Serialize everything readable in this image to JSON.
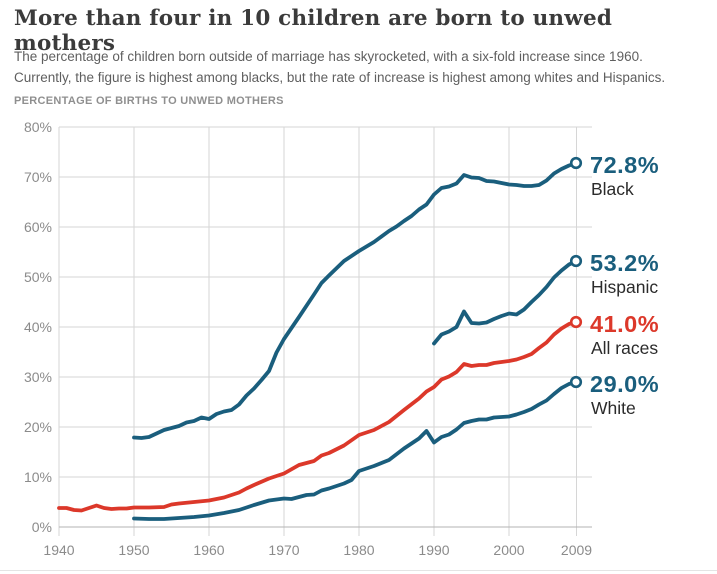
{
  "header": {
    "title": "More than four in 10 children are born to unwed mothers",
    "subtitle_line1": "The percentage of children born outside of marriage has skyrocketed, with a six-fold increase since 1960.",
    "subtitle_line2": "Currently, the figure is highest among blacks, but the rate of increase is highest among whites and Hispanics.",
    "kicker": "PERCENTAGE OF BIRTHS TO UNWED MOTHERS"
  },
  "colors": {
    "line_blue": "#1a5e7d",
    "line_red": "#dc382a",
    "grid": "#d6d6d6",
    "axis_baseline": "#b3b3b3",
    "tick_stub": "#c9c9c9",
    "tick_label": "#8b8b8b",
    "series_name_text": "#2b2b2b",
    "background": "#ffffff"
  },
  "chart_data": {
    "type": "line",
    "title": "More than four in 10 children are born to unwed mothers",
    "ylabel": "PERCENTAGE OF BIRTHS TO UNWED MOTHERS",
    "xlabel": "",
    "xlim": [
      1940,
      2009
    ],
    "ylim": [
      0,
      80
    ],
    "grid": true,
    "x_ticks": [
      1940,
      1950,
      1960,
      1970,
      1980,
      1990,
      2000,
      2009
    ],
    "y_ticks": [
      0,
      10,
      20,
      30,
      40,
      50,
      60,
      70,
      80
    ],
    "y_tick_suffix": "%",
    "legend_position": "right-end-labels",
    "series": [
      {
        "name": "Black",
        "end_label": "72.8%",
        "color": "#1a5e7d",
        "label_color": "#1a5e7d",
        "points": [
          [
            1950,
            17.9
          ],
          [
            1951,
            17.8
          ],
          [
            1952,
            18.0
          ],
          [
            1954,
            19.4
          ],
          [
            1956,
            20.2
          ],
          [
            1957,
            20.9
          ],
          [
            1958,
            21.2
          ],
          [
            1959,
            21.9
          ],
          [
            1960,
            21.6
          ],
          [
            1961,
            22.6
          ],
          [
            1962,
            23.1
          ],
          [
            1963,
            23.4
          ],
          [
            1964,
            24.5
          ],
          [
            1965,
            26.3
          ],
          [
            1966,
            27.7
          ],
          [
            1967,
            29.4
          ],
          [
            1968,
            31.2
          ],
          [
            1969,
            34.9
          ],
          [
            1970,
            37.6
          ],
          [
            1972,
            42.0
          ],
          [
            1974,
            46.5
          ],
          [
            1975,
            48.8
          ],
          [
            1976,
            50.3
          ],
          [
            1978,
            53.2
          ],
          [
            1980,
            55.2
          ],
          [
            1982,
            57.0
          ],
          [
            1984,
            59.2
          ],
          [
            1985,
            60.1
          ],
          [
            1986,
            61.2
          ],
          [
            1987,
            62.2
          ],
          [
            1988,
            63.5
          ],
          [
            1989,
            64.5
          ],
          [
            1990,
            66.5
          ],
          [
            1991,
            67.8
          ],
          [
            1992,
            68.1
          ],
          [
            1993,
            68.7
          ],
          [
            1994,
            70.4
          ],
          [
            1995,
            69.9
          ],
          [
            1996,
            69.8
          ],
          [
            1997,
            69.2
          ],
          [
            1998,
            69.1
          ],
          [
            1999,
            68.8
          ],
          [
            2000,
            68.5
          ],
          [
            2001,
            68.4
          ],
          [
            2002,
            68.2
          ],
          [
            2003,
            68.2
          ],
          [
            2004,
            68.4
          ],
          [
            2005,
            69.3
          ],
          [
            2006,
            70.7
          ],
          [
            2007,
            71.6
          ],
          [
            2008,
            72.3
          ],
          [
            2009,
            72.8
          ]
        ]
      },
      {
        "name": "Hispanic",
        "end_label": "53.2%",
        "color": "#1a5e7d",
        "label_color": "#1a5e7d",
        "points": [
          [
            1990,
            36.7
          ],
          [
            1991,
            38.5
          ],
          [
            1992,
            39.1
          ],
          [
            1993,
            40.0
          ],
          [
            1994,
            43.1
          ],
          [
            1995,
            40.8
          ],
          [
            1996,
            40.7
          ],
          [
            1997,
            40.9
          ],
          [
            1998,
            41.6
          ],
          [
            1999,
            42.2
          ],
          [
            2000,
            42.7
          ],
          [
            2001,
            42.5
          ],
          [
            2002,
            43.5
          ],
          [
            2003,
            45.0
          ],
          [
            2004,
            46.4
          ],
          [
            2005,
            48.0
          ],
          [
            2006,
            49.9
          ],
          [
            2007,
            51.3
          ],
          [
            2008,
            52.5
          ],
          [
            2009,
            53.2
          ]
        ]
      },
      {
        "name": "White",
        "end_label": "29.0%",
        "color": "#1a5e7d",
        "label_color": "#1a5e7d",
        "points": [
          [
            1950,
            1.7
          ],
          [
            1952,
            1.6
          ],
          [
            1954,
            1.6
          ],
          [
            1956,
            1.8
          ],
          [
            1958,
            2.0
          ],
          [
            1960,
            2.3
          ],
          [
            1962,
            2.8
          ],
          [
            1964,
            3.4
          ],
          [
            1966,
            4.4
          ],
          [
            1968,
            5.3
          ],
          [
            1970,
            5.7
          ],
          [
            1971,
            5.6
          ],
          [
            1972,
            6.0
          ],
          [
            1973,
            6.4
          ],
          [
            1974,
            6.5
          ],
          [
            1975,
            7.3
          ],
          [
            1976,
            7.7
          ],
          [
            1978,
            8.7
          ],
          [
            1979,
            9.4
          ],
          [
            1980,
            11.2
          ],
          [
            1982,
            12.2
          ],
          [
            1984,
            13.4
          ],
          [
            1986,
            15.7
          ],
          [
            1988,
            17.7
          ],
          [
            1989,
            19.2
          ],
          [
            1990,
            16.9
          ],
          [
            1991,
            18.0
          ],
          [
            1992,
            18.5
          ],
          [
            1993,
            19.5
          ],
          [
            1994,
            20.8
          ],
          [
            1995,
            21.2
          ],
          [
            1996,
            21.5
          ],
          [
            1997,
            21.5
          ],
          [
            1998,
            21.9
          ],
          [
            1999,
            22.0
          ],
          [
            2000,
            22.1
          ],
          [
            2001,
            22.5
          ],
          [
            2002,
            23.0
          ],
          [
            2003,
            23.6
          ],
          [
            2004,
            24.5
          ],
          [
            2005,
            25.3
          ],
          [
            2006,
            26.6
          ],
          [
            2007,
            27.8
          ],
          [
            2008,
            28.6
          ],
          [
            2009,
            29.0
          ]
        ]
      },
      {
        "name": "All races",
        "end_label": "41.0%",
        "color": "#dc382a",
        "label_color": "#dc382a",
        "points": [
          [
            1940,
            3.8
          ],
          [
            1941,
            3.8
          ],
          [
            1942,
            3.4
          ],
          [
            1943,
            3.3
          ],
          [
            1944,
            3.8
          ],
          [
            1945,
            4.3
          ],
          [
            1946,
            3.8
          ],
          [
            1947,
            3.6
          ],
          [
            1948,
            3.7
          ],
          [
            1949,
            3.7
          ],
          [
            1950,
            3.9
          ],
          [
            1952,
            3.9
          ],
          [
            1954,
            4.0
          ],
          [
            1955,
            4.5
          ],
          [
            1956,
            4.7
          ],
          [
            1958,
            5.0
          ],
          [
            1960,
            5.3
          ],
          [
            1962,
            5.9
          ],
          [
            1964,
            6.9
          ],
          [
            1965,
            7.7
          ],
          [
            1966,
            8.4
          ],
          [
            1968,
            9.7
          ],
          [
            1970,
            10.7
          ],
          [
            1972,
            12.4
          ],
          [
            1974,
            13.2
          ],
          [
            1975,
            14.3
          ],
          [
            1976,
            14.8
          ],
          [
            1978,
            16.3
          ],
          [
            1980,
            18.4
          ],
          [
            1982,
            19.4
          ],
          [
            1984,
            21.0
          ],
          [
            1986,
            23.4
          ],
          [
            1988,
            25.7
          ],
          [
            1989,
            27.1
          ],
          [
            1990,
            28.0
          ],
          [
            1991,
            29.5
          ],
          [
            1992,
            30.1
          ],
          [
            1993,
            31.0
          ],
          [
            1994,
            32.6
          ],
          [
            1995,
            32.2
          ],
          [
            1996,
            32.4
          ],
          [
            1997,
            32.4
          ],
          [
            1998,
            32.8
          ],
          [
            1999,
            33.0
          ],
          [
            2000,
            33.2
          ],
          [
            2001,
            33.5
          ],
          [
            2002,
            34.0
          ],
          [
            2003,
            34.6
          ],
          [
            2004,
            35.8
          ],
          [
            2005,
            36.9
          ],
          [
            2006,
            38.5
          ],
          [
            2007,
            39.7
          ],
          [
            2008,
            40.6
          ],
          [
            2009,
            41.0
          ]
        ]
      }
    ]
  }
}
